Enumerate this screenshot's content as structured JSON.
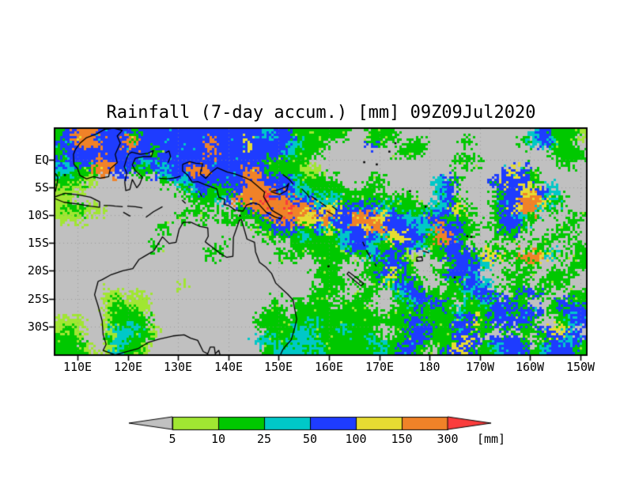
{
  "page": {
    "background": "#ffffff",
    "frame_color": "#000000"
  },
  "chart_data": {
    "type": "heatmap",
    "title": "Rainfall (7-day accum.) [mm] 09Z09Jul2020",
    "x_axis": {
      "tick_lons": [
        110,
        120,
        130,
        140,
        150,
        160,
        170,
        180,
        190,
        200,
        210
      ],
      "tick_labels": [
        "110E",
        "120E",
        "130E",
        "140E",
        "150E",
        "160E",
        "170E",
        "180",
        "170W",
        "160W",
        "150W"
      ]
    },
    "y_axis": {
      "tick_lats": [
        0,
        -5,
        -10,
        -15,
        -20,
        -25,
        -30
      ],
      "tick_labels": [
        "EQ",
        "5S",
        "10S",
        "15S",
        "20S",
        "25S",
        "30S"
      ]
    },
    "lon_range": [
      105.6,
      211.1
    ],
    "lat_range": [
      5.47,
      -35.0
    ],
    "colorbar": {
      "levels": [
        "5",
        "10",
        "25",
        "50",
        "100",
        "150",
        "300"
      ],
      "unit": "[mm]",
      "colors": [
        "#c0c0c0",
        "#a0e632",
        "#00c800",
        "#00c8c8",
        "#1e3cff",
        "#e6dc32",
        "#f08228",
        "#fa3c3c"
      ]
    },
    "palette": [
      "#c0c0c0",
      "#a0e632",
      "#00c800",
      "#00c8c8",
      "#1e3cff",
      "#e6dc32",
      "#f08228",
      "#fa3c3c"
    ],
    "grid": {
      "cols": 56,
      "rows": 24,
      "legend": "0=<5mm gray,1=5-10,2=10-25,3=25-50,4=50-100,5=100-150,6=150-300,7=300+",
      "levels": [
        [
          "24664444",
          "24444444",
          "44444434",
          "42222220",
          "02220000",
          "00000000",
          "00342221"
        ],
        [
          "44666446",
          "64444444",
          "64445444",
          "43222000",
          "04200220",
          "00020000",
          "02343220"
        ],
        [
          "24444444",
          "44244444",
          "64444444",
          "32220000",
          "00002220",
          "00000000",
          "00002222"
        ],
        [
          "44446644",
          "43444444",
          "44444422",
          "22200000",
          "00000000",
          "00222000",
          "00000220"
        ],
        [
          "33226644",
          "22434466",
          "44446422",
          "22110000",
          "00000000",
          "00000004",
          "54200000"
        ],
        [
          "22210000",
          "00023344",
          "44446644",
          "43222200",
          "02200000",
          "34200045",
          "44200000"
        ],
        [
          "12100000",
          "00000234",
          "22246664",
          "43322220",
          "22000000",
          "34000024",
          "45543000"
        ],
        [
          "11000000",
          "00000022",
          "23466676",
          "64433322",
          "22222200",
          "34200024",
          "46653200"
        ],
        [
          "12211000",
          "00000020",
          "20024666",
          "76645544",
          "44332222",
          "34520024",
          "56632000"
        ],
        [
          "11100000",
          "00000202",
          "02222246",
          "66556446",
          "66544334",
          "42220024",
          "43200022"
        ],
        [
          "00000000",
          "00020000",
          "00000224",
          "44243544",
          "56644433",
          "64422024",
          "42000220"
        ],
        [
          "00000000",
          "00000000",
          "00000022",
          "22322234",
          "44355442",
          "66420002",
          "20002200"
        ],
        [
          "00000000",
          "00200000",
          "02000000",
          "02222234",
          "43224432",
          "24420020",
          "00220022"
        ],
        [
          "00000000",
          "00000000",
          "20000002",
          "22022222",
          "23442100",
          "24442552",
          "26653202"
        ],
        [
          "00000000",
          "00000000",
          "00000000",
          "00002200",
          "02244200",
          "02444300",
          "02200022"
        ],
        [
          "00000000",
          "00000000",
          "00000000",
          "00022200",
          "22452200",
          "24443002",
          "22002220"
        ],
        [
          "00000000",
          "00000100",
          "00000000",
          "00002220",
          "02234420",
          "02244300",
          "22022200"
        ],
        [
          "00000110",
          "10000000",
          "00000000",
          "00022200",
          "22023442",
          "22234420",
          "24420022"
        ],
        [
          "00000121",
          "11000000",
          "00000002",
          "02222022",
          "20002344",
          "42022344",
          "42002442"
        ],
        [
          "00000122",
          "21000000",
          "00000022",
          "02222222",
          "22022222",
          "22322244",
          "24402244"
        ],
        [
          "11100122",
          "22000000",
          "00000222",
          "22232222",
          "22222442",
          "22445244",
          "44200234"
        ],
        [
          "12100133",
          "32100000",
          "00000022",
          "23322232",
          "22002244",
          "22442202",
          "02245540"
        ],
        [
          "22200233",
          "22000000",
          "00000332",
          "23332222",
          "23222442",
          "22454044",
          "42024434"
        ],
        [
          "22210132",
          "21000000",
          "00000023",
          "33232222",
          "22324420",
          "24542234",
          "44234442"
        ]
      ]
    },
    "coastlines": [
      [
        [
          114.1,
          -21.9
        ],
        [
          113.4,
          -24.3
        ],
        [
          114.1,
          -26.3
        ],
        [
          114.9,
          -29.0
        ],
        [
          115.1,
          -31.5
        ],
        [
          115.7,
          -33.2
        ],
        [
          115.1,
          -34.3
        ],
        [
          117.5,
          -35.1
        ],
        [
          119.5,
          -34.6
        ],
        [
          122.0,
          -34.0
        ],
        [
          124.0,
          -32.9
        ],
        [
          126.2,
          -32.3
        ],
        [
          129.0,
          -31.7
        ],
        [
          131.2,
          -31.5
        ],
        [
          132.5,
          -32.1
        ],
        [
          133.9,
          -32.5
        ],
        [
          135.0,
          -34.5
        ],
        [
          135.9,
          -34.9
        ],
        [
          136.4,
          -33.7
        ],
        [
          137.2,
          -33.7
        ],
        [
          137.4,
          -34.9
        ],
        [
          138.1,
          -34.3
        ],
        [
          138.5,
          -35.6
        ],
        [
          139.5,
          -36.2
        ],
        [
          143.5,
          -38.8
        ],
        [
          147.9,
          -37.9
        ],
        [
          150.0,
          -37.0
        ],
        [
          150.1,
          -35.6
        ],
        [
          150.8,
          -34.2
        ],
        [
          151.3,
          -33.6
        ],
        [
          152.5,
          -32.4
        ],
        [
          153.2,
          -30.2
        ],
        [
          153.6,
          -28.7
        ],
        [
          153.1,
          -26.5
        ],
        [
          152.9,
          -25.3
        ],
        [
          151.8,
          -24.2
        ],
        [
          150.8,
          -23.4
        ],
        [
          149.4,
          -22.2
        ],
        [
          148.6,
          -20.5
        ],
        [
          147.4,
          -19.3
        ],
        [
          146.2,
          -18.5
        ],
        [
          145.4,
          -16.6
        ],
        [
          145.2,
          -14.9
        ],
        [
          143.7,
          -14.3
        ],
        [
          142.6,
          -10.8
        ],
        [
          142.2,
          -10.9
        ],
        [
          141.5,
          -12.7
        ],
        [
          141.0,
          -14.0
        ],
        [
          140.9,
          -17.4
        ],
        [
          139.7,
          -17.6
        ],
        [
          138.2,
          -16.8
        ],
        [
          137.0,
          -15.9
        ],
        [
          135.8,
          -15.1
        ],
        [
          135.4,
          -14.8
        ],
        [
          136.0,
          -13.8
        ],
        [
          135.9,
          -12.3
        ],
        [
          134.2,
          -12.0
        ],
        [
          132.6,
          -11.3
        ],
        [
          131.0,
          -11.3
        ],
        [
          130.2,
          -12.6
        ],
        [
          129.6,
          -14.9
        ],
        [
          128.2,
          -15.1
        ],
        [
          126.9,
          -13.9
        ],
        [
          125.2,
          -16.4
        ],
        [
          123.5,
          -17.3
        ],
        [
          122.2,
          -18.0
        ],
        [
          121.0,
          -19.6
        ],
        [
          119.0,
          -20.0
        ],
        [
          116.7,
          -20.7
        ],
        [
          114.9,
          -21.6
        ],
        [
          114.1,
          -21.9
        ]
      ],
      [
        [
          130.9,
          -0.9
        ],
        [
          132.3,
          -0.4
        ],
        [
          133.5,
          -0.7
        ],
        [
          134.9,
          -0.8
        ],
        [
          134.4,
          -2.6
        ],
        [
          135.5,
          -3.4
        ],
        [
          136.6,
          -2.3
        ],
        [
          137.8,
          -1.5
        ],
        [
          139.8,
          -2.3
        ],
        [
          141.3,
          -2.6
        ],
        [
          143.6,
          -3.4
        ],
        [
          144.5,
          -3.8
        ],
        [
          145.8,
          -4.8
        ],
        [
          147.2,
          -5.9
        ],
        [
          147.0,
          -6.7
        ],
        [
          147.8,
          -7.9
        ],
        [
          148.6,
          -9.1
        ],
        [
          149.3,
          -9.5
        ],
        [
          150.7,
          -10.2
        ],
        [
          150.4,
          -10.7
        ],
        [
          149.2,
          -10.3
        ],
        [
          147.5,
          -9.5
        ],
        [
          146.1,
          -8.1
        ],
        [
          144.9,
          -7.8
        ],
        [
          143.6,
          -8.2
        ],
        [
          142.9,
          -9.3
        ],
        [
          141.3,
          -9.1
        ],
        [
          140.1,
          -8.3
        ],
        [
          139.1,
          -8.1
        ],
        [
          139.3,
          -7.2
        ],
        [
          138.1,
          -6.8
        ],
        [
          137.7,
          -5.3
        ],
        [
          135.2,
          -4.5
        ],
        [
          133.9,
          -4.0
        ],
        [
          132.8,
          -4.1
        ],
        [
          131.9,
          -2.8
        ],
        [
          130.9,
          -2.1
        ],
        [
          130.9,
          -0.9
        ]
      ],
      [
        [
          109.3,
          -0.9
        ],
        [
          109.2,
          0.9
        ],
        [
          109.6,
          1.8
        ],
        [
          110.5,
          2.9
        ],
        [
          111.8,
          3.9
        ],
        [
          113.9,
          4.6
        ],
        [
          115.4,
          5.4
        ],
        [
          117.2,
          5.6
        ],
        [
          118.9,
          5.2
        ],
        [
          117.9,
          4.2
        ],
        [
          118.5,
          2.9
        ],
        [
          117.5,
          0.9
        ],
        [
          117.9,
          -0.6
        ],
        [
          116.5,
          -1.7
        ],
        [
          116.2,
          -3.1
        ],
        [
          114.5,
          -3.4
        ],
        [
          113.2,
          -3.1
        ],
        [
          111.8,
          -3.5
        ],
        [
          110.5,
          -2.9
        ],
        [
          110.0,
          -1.6
        ],
        [
          109.3,
          -0.9
        ]
      ],
      [
        [
          119.8,
          0.2
        ],
        [
          120.2,
          1.0
        ],
        [
          120.8,
          1.3
        ],
        [
          122.5,
          0.9
        ],
        [
          124.0,
          1.1
        ],
        [
          125.1,
          1.6
        ],
        [
          124.7,
          0.5
        ],
        [
          123.2,
          0.5
        ],
        [
          121.5,
          0.2
        ],
        [
          120.9,
          -1.0
        ],
        [
          121.5,
          -2.0
        ],
        [
          122.9,
          -3.2
        ],
        [
          122.4,
          -4.4
        ],
        [
          121.8,
          -5.1
        ],
        [
          120.9,
          -3.6
        ],
        [
          120.4,
          -5.4
        ],
        [
          119.6,
          -5.6
        ],
        [
          119.4,
          -4.1
        ],
        [
          119.8,
          -2.5
        ],
        [
          119.3,
          -1.3
        ],
        [
          119.8,
          0.2
        ]
      ],
      [
        [
          105.3,
          -6.8
        ],
        [
          107.5,
          -6.1
        ],
        [
          110.4,
          -6.4
        ],
        [
          112.6,
          -6.8
        ],
        [
          114.4,
          -7.6
        ],
        [
          114.4,
          -8.6
        ],
        [
          112.5,
          -8.4
        ],
        [
          110.0,
          -8.0
        ],
        [
          107.3,
          -7.7
        ],
        [
          105.4,
          -7.0
        ],
        [
          105.3,
          -6.8
        ]
      ],
      [
        [
          105.6,
          -2.5
        ],
        [
          106.1,
          -3.2
        ],
        [
          105.9,
          -4.6
        ],
        [
          105.6,
          -5.8
        ]
      ],
      [
        [
          115.2,
          -8.3
        ],
        [
          116.4,
          -8.3
        ],
        [
          117.5,
          -8.4
        ],
        [
          119.0,
          -8.5
        ]
      ],
      [
        [
          119.9,
          -8.4
        ],
        [
          121.5,
          -8.5
        ],
        [
          122.9,
          -8.7
        ]
      ],
      [
        [
          119.1,
          -9.5
        ],
        [
          120.5,
          -10.2
        ]
      ],
      [
        [
          123.6,
          -10.4
        ],
        [
          125.1,
          -9.4
        ],
        [
          126.9,
          -8.5
        ]
      ],
      [
        [
          127.5,
          1.2
        ],
        [
          128.2,
          1.5
        ],
        [
          128.5,
          0.5
        ],
        [
          128.0,
          -0.6
        ]
      ],
      [
        [
          126.2,
          -3.4
        ],
        [
          127.8,
          -3.5
        ],
        [
          129.5,
          -3.3
        ],
        [
          130.5,
          -3.0
        ]
      ],
      [
        [
          130.8,
          -7.3
        ],
        [
          131.5,
          -7.9
        ]
      ],
      [
        [
          134.3,
          -6.0
        ],
        [
          134.7,
          -6.7
        ]
      ],
      [
        [
          148.4,
          -5.8
        ],
        [
          149.8,
          -5.5
        ],
        [
          151.5,
          -4.9
        ],
        [
          152.0,
          -4.3
        ],
        [
          151.6,
          -5.6
        ],
        [
          150.2,
          -6.3
        ],
        [
          148.4,
          -5.8
        ]
      ],
      [
        [
          150.8,
          -2.7
        ],
        [
          152.2,
          -3.7
        ],
        [
          152.9,
          -4.5
        ]
      ],
      [
        [
          154.6,
          -5.3
        ],
        [
          155.7,
          -6.3
        ],
        [
          156.1,
          -6.9
        ]
      ],
      [
        [
          156.5,
          -6.6
        ],
        [
          157.7,
          -7.4
        ]
      ],
      [
        [
          158.1,
          -7.6
        ],
        [
          159.5,
          -8.5
        ]
      ],
      [
        [
          159.6,
          -9.3
        ],
        [
          160.8,
          -9.9
        ]
      ],
      [
        [
          160.6,
          -8.4
        ],
        [
          161.6,
          -9.1
        ]
      ],
      [
        [
          166.7,
          -14.8
        ],
        [
          167.1,
          -15.6
        ]
      ],
      [
        [
          167.4,
          -16.3
        ],
        [
          168.3,
          -17.7
        ]
      ],
      [
        [
          169.1,
          -18.7
        ],
        [
          169.4,
          -19.2
        ]
      ],
      [
        [
          163.9,
          -20.2
        ],
        [
          165.5,
          -21.3
        ],
        [
          166.9,
          -22.3
        ],
        [
          166.4,
          -22.7
        ],
        [
          164.9,
          -21.6
        ],
        [
          163.6,
          -20.6
        ],
        [
          163.9,
          -20.2
        ]
      ],
      [
        [
          177.4,
          -17.6
        ],
        [
          178.5,
          -17.5
        ],
        [
          178.6,
          -18.2
        ],
        [
          177.5,
          -18.3
        ],
        [
          177.4,
          -17.6
        ]
      ],
      [
        [
          178.6,
          -16.4
        ],
        [
          179.9,
          -16.8
        ]
      ]
    ],
    "island_dots": [
      [
        142.3,
        -10.1
      ],
      [
        167.0,
        -0.5
      ],
      [
        169.5,
        -0.9
      ],
      [
        172.0,
        1.4
      ],
      [
        173.2,
        2.9
      ],
      [
        176.1,
        -5.7
      ],
      [
        179.2,
        -8.5
      ],
      [
        185.0,
        -21.2
      ],
      [
        187.5,
        -13.8
      ],
      [
        188.3,
        -13.9
      ],
      [
        159.9,
        -19.2
      ],
      [
        107.5,
        -2.8
      ]
    ]
  }
}
